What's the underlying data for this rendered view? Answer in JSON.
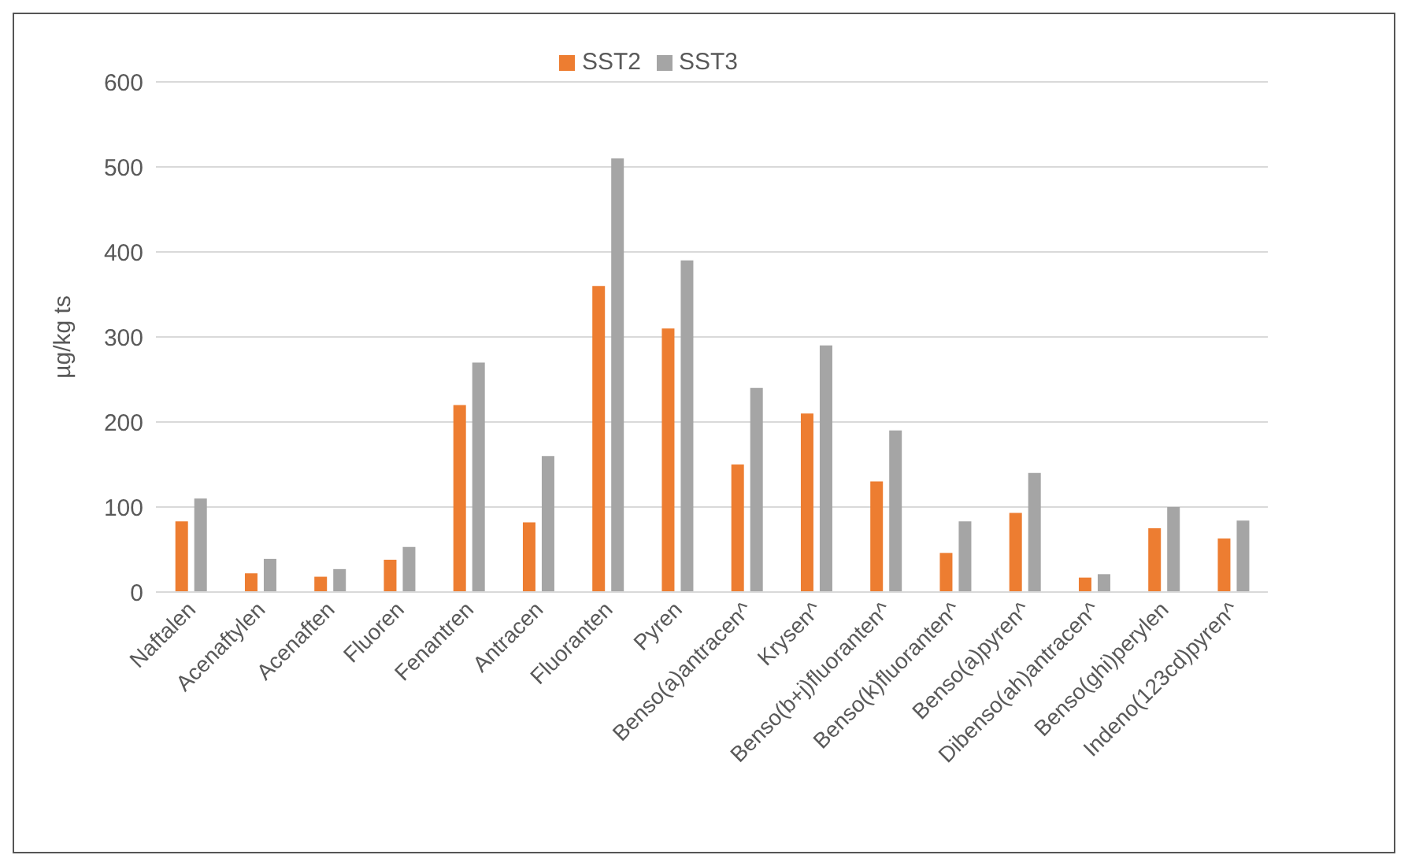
{
  "chart_data": {
    "type": "bar",
    "ylabel": "µg/kg ts",
    "categories": [
      "Naftalen",
      "Acenaftylen",
      "Acenaften",
      "Fluoren",
      "Fenantren",
      "Antracen",
      "Fluoranten",
      "Pyren",
      "Benso(a)antracen^",
      "Krysen^",
      "Benso(b+j)fluoranten^",
      "Benso(k)fluoranten^",
      "Benso(a)pyren^",
      "Dibenso(ah)antracen^",
      "Benso(ghi)perylen",
      "Indeno(123cd)pyren^"
    ],
    "series": [
      {
        "name": "SST2",
        "color": "#ed7d31",
        "values": [
          83,
          22,
          18,
          38,
          220,
          82,
          360,
          310,
          150,
          210,
          130,
          46,
          93,
          17,
          75,
          63
        ]
      },
      {
        "name": "SST3",
        "color": "#a5a5a5",
        "values": [
          110,
          39,
          27,
          53,
          270,
          160,
          510,
          390,
          240,
          290,
          190,
          83,
          140,
          21,
          100,
          84
        ]
      }
    ],
    "ylim": [
      0,
      600
    ],
    "yticks": [
      0,
      100,
      200,
      300,
      400,
      500,
      600
    ],
    "grid": "y",
    "legend": "top"
  }
}
